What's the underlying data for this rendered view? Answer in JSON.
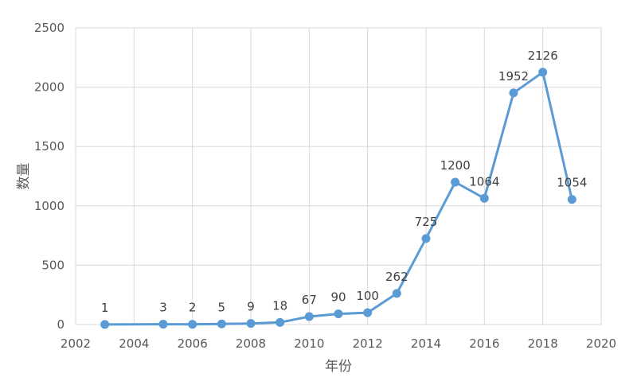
{
  "chart_data": {
    "type": "scatter",
    "mode": "lines+markers",
    "xlabel": "年份",
    "ylabel": "数量",
    "xlim": [
      2002,
      2020
    ],
    "ylim": [
      0,
      2500
    ],
    "x_ticks": [
      2002,
      2004,
      2006,
      2008,
      2010,
      2012,
      2014,
      2016,
      2018,
      2020
    ],
    "y_ticks": [
      0,
      500,
      1000,
      1500,
      2000,
      2500
    ],
    "grid": true,
    "legend": "none",
    "series_color": "#5b9bd5",
    "series": [
      {
        "x": [
          2003,
          2005,
          2006,
          2007,
          2008,
          2009,
          2010,
          2011,
          2012,
          2013,
          2014,
          2015,
          2016,
          2017,
          2018,
          2019
        ],
        "values": [
          1,
          3,
          2,
          5,
          9,
          18,
          67,
          90,
          100,
          262,
          725,
          1200,
          1064,
          1952,
          2126,
          1054
        ],
        "data_labels": [
          "1",
          "3",
          "2",
          "5",
          "9",
          "18",
          "67",
          "90",
          "100",
          "262",
          "725",
          "1200",
          "1064",
          "1952",
          "2126",
          "1054"
        ]
      }
    ]
  }
}
